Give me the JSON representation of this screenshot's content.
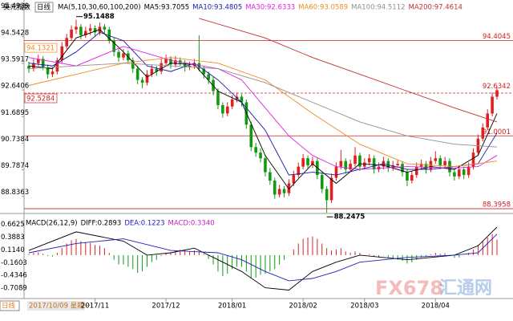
{
  "chart_data": {
    "type": "candlestick",
    "title": "美元指数",
    "period": "日线",
    "ma_label": "MA(5,10,30,60,100,200)",
    "cursor_date": "2017/10/09 星期一",
    "watermark": {
      "brand": "FX678",
      "name": "汇通网"
    },
    "up_color": "#e02020",
    "down_color": "#109a10",
    "ylim": [
      88.34,
      95.57
    ],
    "yticks": [
      88.8363,
      89.7874,
      90.7384,
      91.6895,
      92.6406,
      93.5917,
      94.5428,
      95.4939
    ],
    "x_labels": [
      {
        "index": 14,
        "label": "2017/11"
      },
      {
        "index": 29,
        "label": "2017/12"
      },
      {
        "index": 43,
        "label": "2018/01"
      },
      {
        "index": 58,
        "label": "2018/02"
      },
      {
        "index": 71,
        "label": "2018/03"
      },
      {
        "index": 86,
        "label": "2018/04"
      }
    ],
    "lines": [
      {
        "value": 94.4045,
        "style": "solid",
        "side": "right"
      },
      {
        "value": 91.0001,
        "style": "solid",
        "side": "right"
      },
      {
        "value": 88.3958,
        "style": "solid",
        "side": "right"
      },
      {
        "value": 92.5284,
        "style": "dashed",
        "side": "left"
      }
    ],
    "price_tags": [
      {
        "value": 94.1321,
        "side": "left"
      },
      {
        "value": 92.6342,
        "side": "right"
      }
    ],
    "annotations": [
      {
        "index": 10,
        "value": 95.1488,
        "place": "above"
      },
      {
        "index": 63,
        "value": 88.2475,
        "place": "below"
      }
    ],
    "candles": [
      [
        93.5,
        93.65,
        93.25,
        93.4
      ],
      [
        93.4,
        93.75,
        93.3,
        93.6
      ],
      [
        93.6,
        93.9,
        93.5,
        93.75
      ],
      [
        93.75,
        93.85,
        93.35,
        93.45
      ],
      [
        93.45,
        93.55,
        93.05,
        93.2
      ],
      [
        93.2,
        93.45,
        93.1,
        93.3
      ],
      [
        93.3,
        93.8,
        93.2,
        93.7
      ],
      [
        93.7,
        94.35,
        93.6,
        94.2
      ],
      [
        94.2,
        94.65,
        94.1,
        94.5
      ],
      [
        94.5,
        94.95,
        94.4,
        94.8
      ],
      [
        94.8,
        95.15,
        94.65,
        94.9
      ],
      [
        94.9,
        95.0,
        94.45,
        94.6
      ],
      [
        94.6,
        94.9,
        94.5,
        94.75
      ],
      [
        94.75,
        95.0,
        94.6,
        94.85
      ],
      [
        94.85,
        94.95,
        94.55,
        94.7
      ],
      [
        94.7,
        95.05,
        94.6,
        94.9
      ],
      [
        94.9,
        95.0,
        94.65,
        94.8
      ],
      [
        94.8,
        94.9,
        94.3,
        94.4
      ],
      [
        94.4,
        94.5,
        93.85,
        94.0
      ],
      [
        94.0,
        94.1,
        93.65,
        93.8
      ],
      [
        93.8,
        94.1,
        93.7,
        93.95
      ],
      [
        93.95,
        94.05,
        93.6,
        93.7
      ],
      [
        93.7,
        93.8,
        93.25,
        93.4
      ],
      [
        93.4,
        93.5,
        92.85,
        93.0
      ],
      [
        93.0,
        93.1,
        92.7,
        92.9
      ],
      [
        92.9,
        93.35,
        92.8,
        93.2
      ],
      [
        93.2,
        93.55,
        93.1,
        93.4
      ],
      [
        93.4,
        93.5,
        93.15,
        93.3
      ],
      [
        93.3,
        93.75,
        93.2,
        93.6
      ],
      [
        93.6,
        93.9,
        93.5,
        93.75
      ],
      [
        93.75,
        93.85,
        93.4,
        93.55
      ],
      [
        93.55,
        93.85,
        93.45,
        93.7
      ],
      [
        93.7,
        93.8,
        93.5,
        93.6
      ],
      [
        93.6,
        93.7,
        93.3,
        93.45
      ],
      [
        93.45,
        93.65,
        93.35,
        93.5
      ],
      [
        93.5,
        93.75,
        93.4,
        93.6
      ],
      [
        93.6,
        94.6,
        93.3,
        93.4
      ],
      [
        93.4,
        93.5,
        93.05,
        93.2
      ],
      [
        93.2,
        93.3,
        92.85,
        93.0
      ],
      [
        93.0,
        93.1,
        92.45,
        92.6
      ],
      [
        92.6,
        92.7,
        91.95,
        92.1
      ],
      [
        92.1,
        92.2,
        91.65,
        91.8
      ],
      [
        91.8,
        92.2,
        91.7,
        92.05
      ],
      [
        92.05,
        92.45,
        91.95,
        92.3
      ],
      [
        92.3,
        92.55,
        92.2,
        92.4
      ],
      [
        92.4,
        92.5,
        92.05,
        92.2
      ],
      [
        92.2,
        92.3,
        91.25,
        91.4
      ],
      [
        91.4,
        91.5,
        90.45,
        90.6
      ],
      [
        90.6,
        90.75,
        90.25,
        90.4
      ],
      [
        90.4,
        90.55,
        90.05,
        90.2
      ],
      [
        90.2,
        90.3,
        89.55,
        89.7
      ],
      [
        89.7,
        89.85,
        89.25,
        89.4
      ],
      [
        89.4,
        89.5,
        88.75,
        88.9
      ],
      [
        88.9,
        89.25,
        88.8,
        89.1
      ],
      [
        89.1,
        89.2,
        88.8,
        88.95
      ],
      [
        88.95,
        89.45,
        88.85,
        89.3
      ],
      [
        89.3,
        89.75,
        89.2,
        89.6
      ],
      [
        89.6,
        90.05,
        89.5,
        89.9
      ],
      [
        89.9,
        90.35,
        89.8,
        90.2
      ],
      [
        90.2,
        90.3,
        89.85,
        89.95
      ],
      [
        89.95,
        90.25,
        89.85,
        90.1
      ],
      [
        90.1,
        90.2,
        89.45,
        89.6
      ],
      [
        89.6,
        89.7,
        88.95,
        89.1
      ],
      [
        89.1,
        89.2,
        88.25,
        88.7
      ],
      [
        88.7,
        89.65,
        88.6,
        89.5
      ],
      [
        89.5,
        90.05,
        89.4,
        89.9
      ],
      [
        89.9,
        90.5,
        89.8,
        90.1
      ],
      [
        90.1,
        90.2,
        89.65,
        89.8
      ],
      [
        89.8,
        90.15,
        89.7,
        90.0
      ],
      [
        90.0,
        90.6,
        89.9,
        90.3
      ],
      [
        90.3,
        90.4,
        89.75,
        89.9
      ],
      [
        89.9,
        90.2,
        89.8,
        90.05
      ],
      [
        90.05,
        90.35,
        89.95,
        90.2
      ],
      [
        90.2,
        90.3,
        89.65,
        89.8
      ],
      [
        89.8,
        90.05,
        89.7,
        89.9
      ],
      [
        89.9,
        90.25,
        89.8,
        90.1
      ],
      [
        90.1,
        90.2,
        89.7,
        89.85
      ],
      [
        89.85,
        90.1,
        89.75,
        89.95
      ],
      [
        89.95,
        90.15,
        89.85,
        90.0
      ],
      [
        90.0,
        90.1,
        89.55,
        89.7
      ],
      [
        89.7,
        89.8,
        89.2,
        89.4
      ],
      [
        89.4,
        89.75,
        89.3,
        89.6
      ],
      [
        89.6,
        90.05,
        89.5,
        89.9
      ],
      [
        89.9,
        90.15,
        89.8,
        90.0
      ],
      [
        90.0,
        90.1,
        89.65,
        89.8
      ],
      [
        89.8,
        90.25,
        89.7,
        90.1
      ],
      [
        90.1,
        90.45,
        90.0,
        90.2
      ],
      [
        90.2,
        90.3,
        89.8,
        89.95
      ],
      [
        89.95,
        90.25,
        89.85,
        90.1
      ],
      [
        90.1,
        90.2,
        89.55,
        89.7
      ],
      [
        89.7,
        89.8,
        89.4,
        89.55
      ],
      [
        89.55,
        89.95,
        89.45,
        89.8
      ],
      [
        89.8,
        89.9,
        89.45,
        89.6
      ],
      [
        89.6,
        90.05,
        89.5,
        89.9
      ],
      [
        89.9,
        90.55,
        89.8,
        90.4
      ],
      [
        90.4,
        91.05,
        90.3,
        90.9
      ],
      [
        90.9,
        91.45,
        90.8,
        91.3
      ],
      [
        91.3,
        91.95,
        91.2,
        91.8
      ],
      [
        91.8,
        92.55,
        91.7,
        92.4
      ],
      [
        92.4,
        92.75,
        92.3,
        92.63
      ]
    ],
    "series": [
      {
        "name": "MA5:93.7055",
        "color": "#000000",
        "points": [
          [
            0,
            93.5
          ],
          [
            5,
            93.4
          ],
          [
            10,
            94.5
          ],
          [
            15,
            94.8
          ],
          [
            20,
            94.0
          ],
          [
            25,
            93.1
          ],
          [
            30,
            93.6
          ],
          [
            35,
            93.55
          ],
          [
            40,
            92.6
          ],
          [
            45,
            92.2
          ],
          [
            50,
            90.3
          ],
          [
            55,
            89.1
          ],
          [
            60,
            90.0
          ],
          [
            65,
            89.3
          ],
          [
            70,
            90.0
          ],
          [
            75,
            89.95
          ],
          [
            80,
            89.7
          ],
          [
            85,
            89.9
          ],
          [
            90,
            89.8
          ],
          [
            95,
            90.3
          ],
          [
            99,
            91.8
          ]
        ]
      },
      {
        "name": "MA10:93.4805",
        "color": "#1a1aa8",
        "points": [
          [
            0,
            93.6
          ],
          [
            5,
            93.5
          ],
          [
            10,
            94.0
          ],
          [
            15,
            94.7
          ],
          [
            20,
            94.4
          ],
          [
            25,
            93.5
          ],
          [
            30,
            93.3
          ],
          [
            35,
            93.6
          ],
          [
            40,
            93.0
          ],
          [
            45,
            92.2
          ],
          [
            50,
            91.2
          ],
          [
            55,
            89.6
          ],
          [
            60,
            89.7
          ],
          [
            65,
            89.6
          ],
          [
            70,
            89.8
          ],
          [
            75,
            90.0
          ],
          [
            80,
            89.8
          ],
          [
            85,
            89.8
          ],
          [
            90,
            89.9
          ],
          [
            95,
            90.0
          ],
          [
            99,
            91.1
          ]
        ]
      },
      {
        "name": "MA30:92.6333",
        "color": "#e020e0",
        "points": [
          [
            0,
            93.8
          ],
          [
            10,
            93.5
          ],
          [
            20,
            94.2
          ],
          [
            30,
            93.7
          ],
          [
            40,
            93.4
          ],
          [
            45,
            93.0
          ],
          [
            50,
            92.0
          ],
          [
            55,
            91.0
          ],
          [
            60,
            90.3
          ],
          [
            65,
            89.9
          ],
          [
            70,
            89.8
          ],
          [
            80,
            89.9
          ],
          [
            90,
            89.85
          ],
          [
            95,
            89.9
          ],
          [
            99,
            90.3
          ]
        ]
      },
      {
        "name": "MA60:93.0589",
        "color": "#f08c20",
        "points": [
          [
            0,
            92.8
          ],
          [
            10,
            93.2
          ],
          [
            20,
            93.6
          ],
          [
            30,
            93.8
          ],
          [
            40,
            93.6
          ],
          [
            50,
            93.0
          ],
          [
            60,
            91.8
          ],
          [
            70,
            90.7
          ],
          [
            80,
            90.0
          ],
          [
            90,
            89.9
          ],
          [
            99,
            90.1
          ]
        ]
      },
      {
        "name": "MA100:94.5112",
        "color": "#909090",
        "points": [
          [
            0,
            93.4
          ],
          [
            20,
            93.6
          ],
          [
            40,
            93.4
          ],
          [
            50,
            92.9
          ],
          [
            60,
            92.2
          ],
          [
            70,
            91.5
          ],
          [
            80,
            91.0
          ],
          [
            90,
            90.7
          ],
          [
            99,
            90.6
          ]
        ]
      },
      {
        "name": "MA200:97.4614",
        "color": "#c03030",
        "points": [
          [
            36,
            95.2
          ],
          [
            50,
            94.5
          ],
          [
            60,
            93.8
          ],
          [
            70,
            93.2
          ],
          [
            80,
            92.6
          ],
          [
            90,
            92.0
          ],
          [
            99,
            91.5
          ]
        ]
      }
    ],
    "macd": {
      "label": "MACD(26,12,9)",
      "ylim": [
        -0.93,
        0.79
      ],
      "yticks": [
        0.6625,
        0.3883,
        {
          "value": 0.114,
          "label": "0.1140"
        },
        -0.1603,
        -0.4346,
        -0.7089
      ],
      "histogram_name": "MACD:0.3340",
      "histogram": [
        0.02,
        0.05,
        0.06,
        0.03,
        -0.02,
        -0.03,
        0.05,
        0.15,
        0.25,
        0.32,
        0.35,
        0.3,
        0.28,
        0.26,
        0.22,
        0.2,
        0.15,
        0.05,
        -0.1,
        -0.2,
        -0.2,
        -0.25,
        -0.3,
        -0.38,
        -0.35,
        -0.25,
        -0.15,
        -0.1,
        -0.02,
        0.05,
        0.06,
        0.1,
        0.12,
        0.1,
        0.08,
        0.1,
        0.08,
        0.02,
        -0.08,
        -0.2,
        -0.35,
        -0.45,
        -0.4,
        -0.3,
        -0.25,
        -0.25,
        -0.35,
        -0.5,
        -0.48,
        -0.42,
        -0.4,
        -0.35,
        -0.3,
        -0.2,
        -0.1,
        0.0,
        0.12,
        0.25,
        0.35,
        0.38,
        0.4,
        0.35,
        0.25,
        0.15,
        0.1,
        0.12,
        0.15,
        0.08,
        0.05,
        0.08,
        0.05,
        0.0,
        0.02,
        -0.03,
        -0.05,
        0.0,
        -0.05,
        -0.08,
        -0.1,
        -0.12,
        -0.18,
        -0.15,
        -0.1,
        -0.05,
        -0.04,
        0.02,
        0.05,
        0.03,
        0.04,
        -0.02,
        -0.06,
        -0.05,
        0.0,
        0.05,
        0.12,
        0.22,
        0.3,
        0.38,
        0.45,
        0.334
      ],
      "series": [
        {
          "name": "DIFF:0.2893",
          "color": "#000000",
          "points": [
            [
              0,
              0.1
            ],
            [
              10,
              0.5
            ],
            [
              20,
              0.3
            ],
            [
              25,
              0.0
            ],
            [
              30,
              0.05
            ],
            [
              35,
              0.15
            ],
            [
              40,
              -0.1
            ],
            [
              45,
              -0.35
            ],
            [
              50,
              -0.7
            ],
            [
              55,
              -0.75
            ],
            [
              60,
              -0.35
            ],
            [
              65,
              -0.15
            ],
            [
              70,
              0.0
            ],
            [
              80,
              -0.1
            ],
            [
              90,
              0.0
            ],
            [
              95,
              0.2
            ],
            [
              99,
              0.6
            ]
          ]
        },
        {
          "name": "DEA:0.1223",
          "color": "#2020c0",
          "points": [
            [
              0,
              0.05
            ],
            [
              10,
              0.25
            ],
            [
              20,
              0.35
            ],
            [
              30,
              0.1
            ],
            [
              40,
              0.05
            ],
            [
              45,
              -0.1
            ],
            [
              50,
              -0.35
            ],
            [
              55,
              -0.55
            ],
            [
              60,
              -0.5
            ],
            [
              65,
              -0.35
            ],
            [
              70,
              -0.15
            ],
            [
              80,
              -0.05
            ],
            [
              90,
              0.0
            ],
            [
              95,
              0.05
            ],
            [
              99,
              0.45
            ]
          ]
        }
      ]
    }
  }
}
